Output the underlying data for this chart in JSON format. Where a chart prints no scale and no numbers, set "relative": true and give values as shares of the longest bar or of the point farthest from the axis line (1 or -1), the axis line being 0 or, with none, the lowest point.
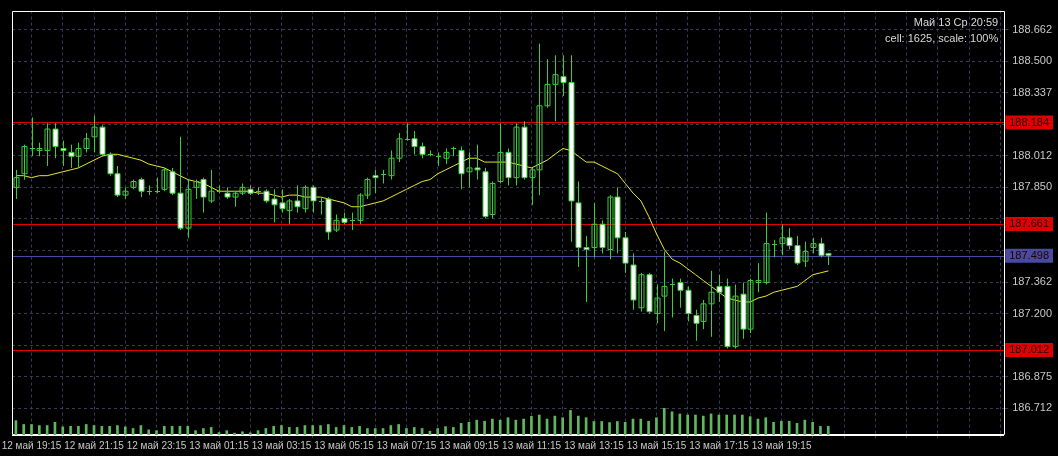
{
  "chart_data": [
    {
      "type": "candlestick",
      "categories": [
        null,
        null,
        "12 май 19:15",
        null,
        null,
        null,
        null,
        null,
        null,
        null,
        "12 май 21:15",
        null,
        null,
        null,
        null,
        null,
        null,
        null,
        "12 май 23:15",
        null,
        null,
        null,
        null,
        null,
        null,
        null,
        "13 май 01:15",
        null,
        null,
        null,
        null,
        null,
        null,
        null,
        "13 май 03:15",
        null,
        null,
        null,
        null,
        null,
        null,
        null,
        "13 май 05:15",
        null,
        null,
        null,
        null,
        null,
        null,
        null,
        "13 май 07:15",
        null,
        null,
        null,
        null,
        null,
        null,
        null,
        "13 май 09:15",
        null,
        null,
        null,
        null,
        null,
        null,
        null,
        "13 май 11:15",
        null,
        null,
        null,
        null,
        null,
        null,
        null,
        "13 май 13:15",
        null,
        null,
        null,
        null,
        null,
        null,
        null,
        "13 май 15:15",
        null,
        null,
        null,
        null,
        null,
        null,
        null,
        "13 май 17:15",
        null,
        null,
        null,
        null,
        null,
        null,
        null,
        "13 май 19:15",
        null,
        null,
        null,
        null,
        null,
        null,
        null,
        null,
        null,
        null,
        null,
        null,
        null,
        null,
        null,
        null,
        null,
        null,
        null,
        null,
        null,
        null,
        null,
        null,
        null,
        null,
        null,
        null
      ],
      "ohlc": [
        [
          187.85,
          187.94,
          187.79,
          187.9
        ],
        [
          187.92,
          188.07,
          187.89,
          188.06
        ],
        [
          188.05,
          188.21,
          188.01,
          188.05
        ],
        [
          188.04,
          188.08,
          188.01,
          188.05
        ],
        [
          188.04,
          188.18,
          187.96,
          188.15
        ],
        [
          188.15,
          188.18,
          188.0,
          188.06
        ],
        [
          188.05,
          188.09,
          187.96,
          188.04
        ],
        [
          188.03,
          188.07,
          187.95,
          188.01
        ],
        [
          188.01,
          188.08,
          187.95,
          188.05
        ],
        [
          188.05,
          188.13,
          188.03,
          188.1
        ],
        [
          188.11,
          188.22,
          188.03,
          188.16
        ],
        [
          188.16,
          188.17,
          188.01,
          188.02
        ],
        [
          188.02,
          188.03,
          187.91,
          187.92
        ],
        [
          187.92,
          187.96,
          187.8,
          187.81
        ],
        [
          187.81,
          187.85,
          187.79,
          187.83
        ],
        [
          187.85,
          187.89,
          187.84,
          187.88
        ],
        [
          187.89,
          187.9,
          187.8,
          187.83
        ],
        [
          187.83,
          187.86,
          187.81,
          187.83
        ],
        [
          187.83,
          187.9,
          187.82,
          187.83
        ],
        [
          187.84,
          187.95,
          187.83,
          187.94
        ],
        [
          187.93,
          187.95,
          187.81,
          187.82
        ],
        [
          187.82,
          188.11,
          187.63,
          187.64
        ],
        [
          187.64,
          187.89,
          187.59,
          187.84
        ],
        [
          187.85,
          187.89,
          187.79,
          187.88
        ],
        [
          187.89,
          187.9,
          187.72,
          187.8
        ],
        [
          187.78,
          187.94,
          187.77,
          187.83
        ],
        [
          187.83,
          187.86,
          187.82,
          187.83
        ],
        [
          187.82,
          187.85,
          187.79,
          187.8
        ],
        [
          187.8,
          187.83,
          187.75,
          187.82
        ],
        [
          187.82,
          187.87,
          187.81,
          187.85
        ],
        [
          187.84,
          187.86,
          187.81,
          187.82
        ],
        [
          187.83,
          187.85,
          187.81,
          187.83
        ],
        [
          187.83,
          187.84,
          187.77,
          187.78
        ],
        [
          187.79,
          187.84,
          187.67,
          187.76
        ],
        [
          187.77,
          187.84,
          187.72,
          187.74
        ],
        [
          187.73,
          187.79,
          187.66,
          187.78
        ],
        [
          187.78,
          187.86,
          187.72,
          187.75
        ],
        [
          187.74,
          187.86,
          187.72,
          187.85
        ],
        [
          187.85,
          187.86,
          187.72,
          187.78
        ],
        [
          187.78,
          187.8,
          187.71,
          187.78
        ],
        [
          187.79,
          187.8,
          187.58,
          187.62
        ],
        [
          187.63,
          187.71,
          187.62,
          187.68
        ],
        [
          187.69,
          187.72,
          187.66,
          187.67
        ],
        [
          187.68,
          187.72,
          187.63,
          187.68
        ],
        [
          187.68,
          187.82,
          187.66,
          187.81
        ],
        [
          187.81,
          187.9,
          187.79,
          187.89
        ],
        [
          187.91,
          187.94,
          187.82,
          187.9
        ],
        [
          187.92,
          187.94,
          187.87,
          187.92
        ],
        [
          187.91,
          188.04,
          187.89,
          188.0
        ],
        [
          188.0,
          188.13,
          187.98,
          188.1
        ],
        [
          188.1,
          188.18,
          188.09,
          188.1
        ],
        [
          188.1,
          188.14,
          188.02,
          188.06
        ],
        [
          188.06,
          188.08,
          188.0,
          188.02
        ],
        [
          188.02,
          188.04,
          188.01,
          188.02
        ],
        [
          188.01,
          188.03,
          187.96,
          188.01
        ],
        [
          188.0,
          188.05,
          187.97,
          188.03
        ],
        [
          188.05,
          188.06,
          188.01,
          188.05
        ],
        [
          188.04,
          188.06,
          187.84,
          187.92
        ],
        [
          187.93,
          188.03,
          187.85,
          187.95
        ],
        [
          187.95,
          188.07,
          187.89,
          187.94
        ],
        [
          187.93,
          187.95,
          187.69,
          187.7
        ],
        [
          187.71,
          187.88,
          187.69,
          187.87
        ],
        [
          187.88,
          188.18,
          187.87,
          188.03
        ],
        [
          188.03,
          188.05,
          187.86,
          187.9
        ],
        [
          187.9,
          188.18,
          187.86,
          188.16
        ],
        [
          188.16,
          188.19,
          187.89,
          187.9
        ],
        [
          187.9,
          187.95,
          187.76,
          187.94
        ],
        [
          187.94,
          188.59,
          187.81,
          188.27
        ],
        [
          188.27,
          188.51,
          188.26,
          188.38
        ],
        [
          188.38,
          188.53,
          188.19,
          188.43
        ],
        [
          188.42,
          188.53,
          188.32,
          188.39
        ],
        [
          188.39,
          188.53,
          187.57,
          187.78
        ],
        [
          187.77,
          187.88,
          187.44,
          187.54
        ],
        [
          187.54,
          187.6,
          187.26,
          187.53
        ],
        [
          187.54,
          187.77,
          187.49,
          187.66
        ],
        [
          187.66,
          187.68,
          187.51,
          187.54
        ],
        [
          187.53,
          187.81,
          187.48,
          187.8
        ],
        [
          187.8,
          187.85,
          187.51,
          187.59
        ],
        [
          187.59,
          187.62,
          187.41,
          187.46
        ],
        [
          187.45,
          187.51,
          187.22,
          187.27
        ],
        [
          187.23,
          187.41,
          187.21,
          187.4
        ],
        [
          187.4,
          187.41,
          187.2,
          187.21
        ],
        [
          187.2,
          187.35,
          187.15,
          187.28
        ],
        [
          187.29,
          187.52,
          187.11,
          187.34
        ],
        [
          187.35,
          187.38,
          187.18,
          187.35
        ],
        [
          187.36,
          187.38,
          187.23,
          187.32
        ],
        [
          187.32,
          187.34,
          187.16,
          187.2
        ],
        [
          187.19,
          187.22,
          187.06,
          187.15
        ],
        [
          187.16,
          187.27,
          187.12,
          187.25
        ],
        [
          187.25,
          187.42,
          187.08,
          187.31
        ],
        [
          187.34,
          187.4,
          187.26,
          187.31
        ],
        [
          187.34,
          187.38,
          187.02,
          187.03
        ],
        [
          187.03,
          187.35,
          187.02,
          187.29
        ],
        [
          187.3,
          187.36,
          187.07,
          187.12
        ],
        [
          187.12,
          187.38,
          187.1,
          187.37
        ],
        [
          187.36,
          187.46,
          187.31,
          187.37
        ],
        [
          187.36,
          187.72,
          187.35,
          187.56
        ],
        [
          187.56,
          187.58,
          187.49,
          187.56
        ],
        [
          187.56,
          187.66,
          187.5,
          187.59
        ],
        [
          187.59,
          187.64,
          187.53,
          187.55
        ],
        [
          187.55,
          187.6,
          187.45,
          187.46
        ],
        [
          187.47,
          187.57,
          187.44,
          187.52
        ],
        [
          187.54,
          187.59,
          187.51,
          187.56
        ],
        [
          187.56,
          187.59,
          187.49,
          187.5
        ],
        [
          187.51,
          187.51,
          187.45,
          187.5
        ],
        null,
        null,
        null,
        null,
        null,
        null,
        null,
        null,
        null,
        null,
        null,
        null,
        null,
        null,
        null,
        null,
        null,
        null,
        null,
        null,
        null,
        null
      ],
      "color": "#3ccc3c",
      "colors": [
        "#3ccc3c",
        "#3ccc3c",
        "#3ccc3c",
        "#3ccc3c",
        "#3ccc3c",
        "#ffffff",
        "#ffffff",
        "#ffffff",
        "#3ccc3c",
        "#3ccc3c",
        "#3ccc3c",
        "#ffffff",
        "#ffffff",
        "#ffffff",
        "#3ccc3c",
        "#3ccc3c",
        "#ffffff",
        "#3ccc3c",
        "#3ccc3c",
        "#3ccc3c",
        "#ffffff",
        "#ffffff",
        "#3ccc3c",
        "#3ccc3c",
        "#ffffff",
        "#3ccc3c",
        "#3ccc3c",
        "#ffffff",
        "#3ccc3c",
        "#3ccc3c",
        "#ffffff",
        "#3ccc3c",
        "#ffffff",
        "#ffffff",
        "#ffffff",
        "#3ccc3c",
        "#ffffff",
        "#3ccc3c",
        "#ffffff",
        "#3ccc3c",
        "#ffffff",
        "#3ccc3c",
        "#ffffff",
        "#3ccc3c",
        "#3ccc3c",
        "#3ccc3c",
        "#ffffff",
        "#3ccc3c",
        "#3ccc3c",
        "#3ccc3c",
        "#3ccc3c",
        "#ffffff",
        "#ffffff",
        "#3ccc3c",
        "#3ccc3c",
        "#3ccc3c",
        "#3ccc3c",
        "#ffffff",
        "#3ccc3c",
        "#ffffff",
        "#ffffff",
        "#3ccc3c",
        "#3ccc3c",
        "#ffffff",
        "#3ccc3c",
        "#ffffff",
        "#3ccc3c",
        "#3ccc3c",
        "#3ccc3c",
        "#3ccc3c",
        "#ffffff",
        "#ffffff",
        "#ffffff",
        "#ffffff",
        "#3ccc3c",
        "#ffffff",
        "#3ccc3c",
        "#ffffff",
        "#ffffff",
        "#ffffff",
        "#3ccc3c",
        "#ffffff",
        "#3ccc3c",
        "#3ccc3c",
        "#3ccc3c",
        "#ffffff",
        "#ffffff",
        "#ffffff",
        "#3ccc3c",
        "#3ccc3c",
        "#ffffff",
        "#ffffff",
        "#3ccc3c",
        "#ffffff",
        "#3ccc3c",
        "#3ccc3c",
        "#3ccc3c",
        "#3ccc3c",
        "#3ccc3c",
        "#ffffff",
        "#ffffff",
        "#3ccc3c",
        "#3ccc3c",
        "#ffffff",
        "#ffffff",
        null,
        null,
        null,
        null,
        null,
        null,
        null,
        null,
        null,
        null,
        null,
        null,
        null,
        null,
        null,
        null,
        null,
        null,
        null,
        null,
        null,
        null
      ],
      "series": [
        {
          "type": "line",
          "color": "#e6e632",
          "values": [
            187.91,
            187.91,
            187.9,
            187.91,
            187.91,
            187.92,
            187.93,
            187.94,
            187.95,
            187.97,
            187.99,
            188.01,
            188.02,
            188.02,
            188.01,
            188.0,
            187.99,
            187.97,
            187.96,
            187.95,
            187.93,
            187.91,
            187.89,
            187.88,
            187.87,
            187.85,
            187.83,
            187.83,
            187.83,
            187.83,
            187.83,
            187.82,
            187.82,
            187.81,
            187.8,
            187.81,
            187.81,
            187.8,
            187.8,
            187.8,
            187.79,
            187.78,
            187.77,
            187.75,
            187.75,
            187.76,
            187.77,
            187.78,
            187.8,
            187.82,
            187.84,
            187.86,
            187.88,
            187.89,
            187.92,
            187.94,
            187.96,
            187.98,
            188.0,
            188.0,
            187.98,
            187.98,
            187.98,
            187.98,
            187.97,
            187.96,
            187.95,
            187.97,
            187.99,
            188.02,
            188.05,
            188.04,
            188.01,
            187.98,
            187.98,
            187.96,
            187.94,
            187.92,
            187.87,
            187.82,
            187.78,
            187.7,
            187.61,
            187.53,
            187.48,
            187.46,
            187.43,
            187.4,
            187.37,
            187.34,
            187.31,
            187.28,
            187.27,
            187.26,
            187.26,
            187.28,
            187.29,
            187.31,
            187.32,
            187.33,
            187.34,
            187.37,
            187.4,
            187.41,
            187.42,
            null,
            null,
            null,
            null,
            null,
            null,
            null,
            null,
            null,
            null,
            null,
            null,
            null,
            null,
            null,
            null,
            null,
            null,
            null,
            null,
            null,
            null
          ]
        }
      ],
      "ylim": [
        186.58,
        188.76
      ],
      "yticks": [
        188.662,
        {
          "value": 188.5,
          "label": "188.500"
        },
        188.337,
        {
          "value": 188.175,
          "label": null
        },
        188.012,
        {
          "value": 187.85,
          "label": "187.850"
        },
        {
          "value": 187.687,
          "label": null
        },
        {
          "value": 187.525,
          "label": null
        },
        187.362,
        {
          "value": 187.2,
          "label": "187.200"
        },
        {
          "value": 187.037,
          "label": null
        },
        186.875,
        186.712
      ],
      "grid": true,
      "ref_lines": [
        {
          "axis": "y",
          "value": 188.184,
          "label": "188.184",
          "color": "#e00000"
        },
        {
          "axis": "y",
          "value": 187.661,
          "label": "187.661",
          "color": "#e00000"
        },
        {
          "axis": "y",
          "value": 187.012,
          "label": "187.012",
          "color": "#e00000"
        },
        {
          "axis": "y",
          "value": 187.498,
          "label": "187.498",
          "color": "#4a4aa0"
        }
      ],
      "annotations": [
        "Май 13 Ср 20:59",
        "cell: 1625, scale: 100%"
      ]
    },
    {
      "type": "bar",
      "relative": true,
      "color": "#5fb85f",
      "categories": [
        null,
        null,
        null,
        null,
        null,
        null,
        null,
        null,
        null,
        null,
        null,
        null,
        null,
        null,
        null,
        null,
        null,
        null,
        null,
        null,
        null,
        null,
        null,
        null,
        null,
        null,
        null,
        null,
        null,
        null,
        null,
        null,
        null,
        null,
        null,
        null,
        null,
        null,
        null,
        null,
        null,
        null,
        null,
        null,
        null,
        null,
        null,
        null,
        null,
        null,
        null,
        null,
        null,
        null,
        null,
        null,
        null,
        null,
        null,
        null,
        null,
        null,
        null,
        null,
        null,
        null,
        null,
        null,
        null,
        null,
        null,
        null,
        null,
        null,
        null,
        null,
        null,
        null,
        null,
        null,
        null,
        null,
        null,
        null,
        null,
        null,
        null,
        null,
        null,
        null,
        null,
        null,
        null,
        null,
        null,
        null,
        null,
        null,
        null,
        null,
        null,
        null,
        null,
        null,
        null,
        null,
        null,
        null,
        null,
        null,
        null,
        null,
        null,
        null,
        null,
        null,
        null,
        null,
        null,
        null,
        null,
        null,
        null,
        null,
        null,
        null,
        null
      ],
      "values": [
        0.53,
        0.39,
        0.39,
        0.35,
        0.35,
        0.47,
        0.3,
        0.32,
        0.32,
        0.39,
        0.35,
        0.32,
        0.32,
        0.35,
        0.3,
        0.24,
        0.35,
        0.19,
        0.16,
        0.32,
        0.32,
        0.32,
        0.32,
        0.16,
        0.24,
        0.28,
        0.09,
        0.16,
        0.07,
        0.12,
        0.08,
        0.16,
        0.24,
        0.32,
        0.35,
        0.28,
        0.28,
        0.35,
        0.35,
        0.35,
        0.39,
        0.28,
        0.35,
        0.28,
        0.32,
        0.24,
        0.24,
        0.24,
        0.35,
        0.39,
        0.24,
        0.28,
        0.24,
        0.14,
        0.24,
        0.31,
        0.28,
        0.43,
        0.47,
        0.55,
        0.51,
        0.59,
        0.55,
        0.64,
        0.55,
        0.59,
        0.69,
        0.74,
        0.59,
        0.7,
        0.64,
        0.91,
        0.7,
        0.64,
        0.5,
        0.5,
        0.46,
        0.5,
        0.47,
        0.59,
        0.59,
        0.51,
        0.64,
        1,
        0.86,
        0.78,
        0.74,
        0.74,
        0.7,
        0.78,
        0.74,
        0.74,
        0.74,
        0.74,
        0.68,
        0.59,
        0.64,
        0.47,
        0.51,
        0.51,
        0.43,
        0.55,
        0.47,
        0.32,
        0.32,
        null,
        null,
        null,
        null,
        null,
        null,
        null,
        null,
        null,
        null,
        null,
        null,
        null,
        null,
        null,
        null,
        null,
        null,
        null,
        null,
        null,
        null
      ]
    }
  ]
}
